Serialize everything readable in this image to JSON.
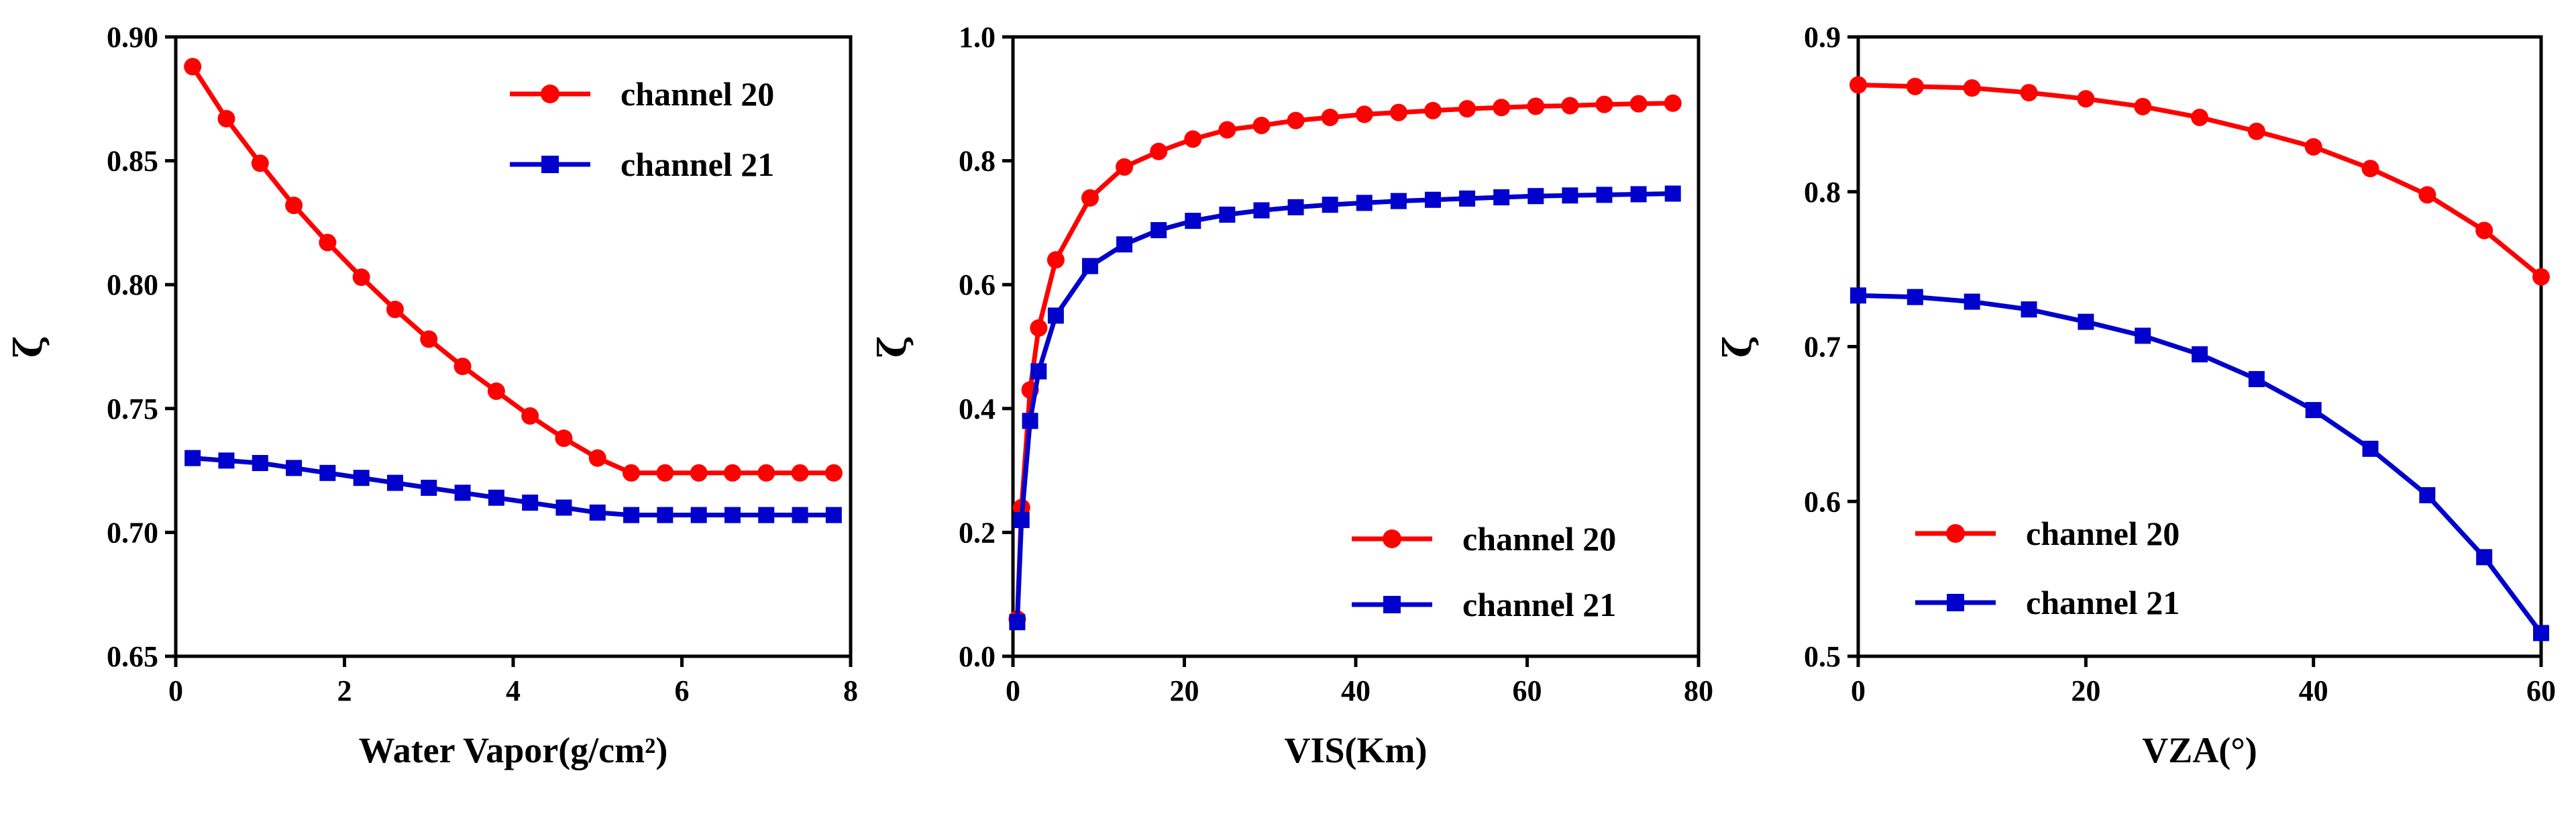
{
  "chart_data": [
    {
      "type": "line",
      "xlabel": "Water Vapor(g/cm²)",
      "ylabel": "ζ",
      "xlim": [
        0,
        8
      ],
      "ylim": [
        0.65,
        0.9
      ],
      "xticks": [
        0,
        2,
        4,
        6,
        8
      ],
      "yticks": [
        0.65,
        0.7,
        0.75,
        0.8,
        0.85,
        0.9
      ],
      "xtick_labels": [
        "0",
        "2",
        "4",
        "6",
        "8"
      ],
      "ytick_labels": [
        "0.65",
        "0.70",
        "0.75",
        "0.80",
        "0.85",
        "0.90"
      ],
      "legend_position": "top-right",
      "series": [
        {
          "name": "channel 20",
          "color": "#ff0000",
          "marker": "circle",
          "x": [
            0.2,
            0.6,
            1.0,
            1.4,
            1.8,
            2.2,
            2.6,
            3.0,
            3.4,
            3.8,
            4.2,
            4.6,
            5.0,
            5.4,
            5.8,
            6.2,
            6.6,
            7.0,
            7.4,
            7.8
          ],
          "y": [
            0.888,
            0.867,
            0.849,
            0.832,
            0.817,
            0.803,
            0.79,
            0.778,
            0.767,
            0.757,
            0.747,
            0.738,
            0.73,
            0.724,
            0.724,
            0.724,
            0.724,
            0.724,
            0.724,
            0.724
          ]
        },
        {
          "name": "channel 21",
          "color": "#0000cd",
          "marker": "square",
          "x": [
            0.2,
            0.6,
            1.0,
            1.4,
            1.8,
            2.2,
            2.6,
            3.0,
            3.4,
            3.8,
            4.2,
            4.6,
            5.0,
            5.4,
            5.8,
            6.2,
            6.6,
            7.0,
            7.4,
            7.8
          ],
          "y": [
            0.73,
            0.729,
            0.728,
            0.726,
            0.724,
            0.722,
            0.72,
            0.718,
            0.716,
            0.714,
            0.712,
            0.71,
            0.708,
            0.707,
            0.707,
            0.707,
            0.707,
            0.707,
            0.707,
            0.707
          ]
        }
      ]
    },
    {
      "type": "line",
      "xlabel": "VIS(Km)",
      "ylabel": "ζ",
      "xlim": [
        0,
        80
      ],
      "ylim": [
        0.0,
        1.0
      ],
      "xticks": [
        0,
        20,
        40,
        60,
        80
      ],
      "yticks": [
        0.0,
        0.2,
        0.4,
        0.6,
        0.8,
        1.0
      ],
      "xtick_labels": [
        "0",
        "20",
        "40",
        "60",
        "80"
      ],
      "ytick_labels": [
        "0.0",
        "0.2",
        "0.4",
        "0.6",
        "0.8",
        "1.0"
      ],
      "legend_position": "bottom-right",
      "series": [
        {
          "name": "channel 20",
          "color": "#ff0000",
          "marker": "circle",
          "x": [
            0.5,
            1,
            2,
            3,
            5,
            9,
            13,
            17,
            21,
            25,
            29,
            33,
            37,
            41,
            45,
            49,
            53,
            57,
            61,
            65,
            69,
            73,
            77
          ],
          "y": [
            0.06,
            0.24,
            0.43,
            0.53,
            0.64,
            0.74,
            0.79,
            0.815,
            0.835,
            0.85,
            0.857,
            0.865,
            0.87,
            0.875,
            0.878,
            0.881,
            0.884,
            0.886,
            0.888,
            0.889,
            0.891,
            0.892,
            0.893
          ]
        },
        {
          "name": "channel 21",
          "color": "#0000cd",
          "marker": "square",
          "x": [
            0.5,
            1,
            2,
            3,
            5,
            9,
            13,
            17,
            21,
            25,
            29,
            33,
            37,
            41,
            45,
            49,
            53,
            57,
            61,
            65,
            69,
            73,
            77
          ],
          "y": [
            0.055,
            0.22,
            0.38,
            0.46,
            0.55,
            0.63,
            0.665,
            0.688,
            0.703,
            0.713,
            0.72,
            0.725,
            0.729,
            0.732,
            0.735,
            0.737,
            0.739,
            0.741,
            0.743,
            0.744,
            0.745,
            0.746,
            0.747
          ]
        }
      ]
    },
    {
      "type": "line",
      "xlabel": "VZA(°)",
      "ylabel": "ζ",
      "xlim": [
        0,
        60
      ],
      "ylim": [
        0.5,
        0.9
      ],
      "xticks": [
        0,
        20,
        40,
        60
      ],
      "yticks": [
        0.5,
        0.6,
        0.7,
        0.8,
        0.9
      ],
      "xtick_labels": [
        "0",
        "20",
        "40",
        "60"
      ],
      "ytick_labels": [
        "0.5",
        "0.6",
        "0.7",
        "0.8",
        "0.9"
      ],
      "legend_position": "bottom-left",
      "series": [
        {
          "name": "channel 20",
          "color": "#ff0000",
          "marker": "circle",
          "x": [
            0,
            5,
            10,
            15,
            20,
            25,
            30,
            35,
            40,
            45,
            50,
            55,
            60
          ],
          "y": [
            0.869,
            0.868,
            0.867,
            0.864,
            0.86,
            0.855,
            0.848,
            0.839,
            0.829,
            0.815,
            0.798,
            0.775,
            0.745
          ]
        },
        {
          "name": "channel 21",
          "color": "#0000cd",
          "marker": "square",
          "x": [
            0,
            5,
            10,
            15,
            20,
            25,
            30,
            35,
            40,
            45,
            50,
            55,
            60
          ],
          "y": [
            0.733,
            0.732,
            0.729,
            0.724,
            0.716,
            0.707,
            0.695,
            0.679,
            0.659,
            0.634,
            0.604,
            0.564,
            0.515
          ]
        }
      ]
    }
  ]
}
